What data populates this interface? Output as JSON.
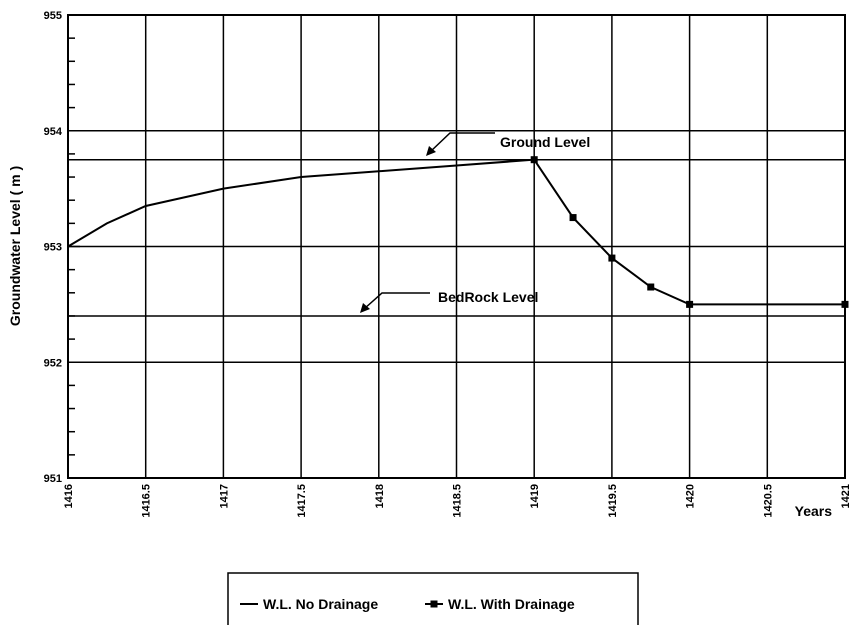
{
  "chart_data": {
    "type": "line",
    "y_label": "Groundwater Level ( m )",
    "x_label": "Years",
    "xlim": [
      1416,
      1421
    ],
    "xticks": [
      1416,
      1416.5,
      1417,
      1417.5,
      1418,
      1418.5,
      1419,
      1419.5,
      1420,
      1420.5,
      1421
    ],
    "ylim": [
      951,
      955
    ],
    "yticks": [
      951,
      952,
      953,
      954,
      955
    ],
    "yminorticks": [
      951.2,
      951.4,
      951.6,
      951.8,
      952.2,
      952.4,
      952.6,
      952.8,
      953.2,
      953.4,
      953.6,
      953.8,
      954.2,
      954.4,
      954.6,
      954.8
    ],
    "grid": true,
    "reference_lines": [
      {
        "label": "Ground Level",
        "value": 953.75
      },
      {
        "label": "BedRock Level",
        "value": 952.4
      }
    ],
    "series": [
      {
        "name": "W.L. No Drainage",
        "color": "#000000",
        "marker": "none",
        "x": [
          1416,
          1416.25,
          1416.5,
          1417,
          1417.5,
          1418,
          1418.5,
          1419
        ],
        "values": [
          953.0,
          953.2,
          953.35,
          953.5,
          953.6,
          953.65,
          953.7,
          953.75
        ]
      },
      {
        "name": "W.L. With Drainage",
        "color": "#000000",
        "marker": "square",
        "x": [
          1419,
          1419.25,
          1419.5,
          1419.75,
          1420,
          1421
        ],
        "values": [
          953.75,
          953.25,
          952.9,
          952.65,
          952.5,
          952.5
        ]
      }
    ]
  }
}
